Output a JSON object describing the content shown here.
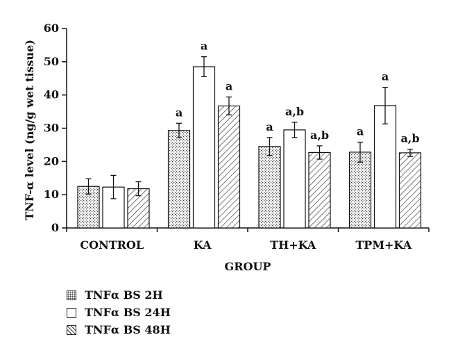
{
  "chart_data": {
    "type": "bar",
    "title": "",
    "xlabel": "GROUP",
    "ylabel": "TNF-α level (ng/g wet tissue)",
    "ylim": [
      0,
      60
    ],
    "yticks": [
      0,
      10,
      20,
      30,
      40,
      50,
      60
    ],
    "grid": false,
    "legend_position": "bottom-left",
    "categories": [
      "CONTROL",
      "KA",
      "TH+KA",
      "TPM+KA"
    ],
    "series": [
      {
        "name": "TNFα BS 2H",
        "pattern": "dots",
        "values": [
          12.5,
          29.3,
          24.5,
          22.8
        ],
        "errors": [
          2.3,
          2.2,
          2.7,
          3.0
        ],
        "labels": [
          "",
          "a",
          "a",
          "a"
        ]
      },
      {
        "name": "TNFα BS 24H",
        "pattern": "open",
        "values": [
          12.3,
          48.5,
          29.5,
          36.8
        ],
        "errors": [
          3.5,
          3.0,
          2.3,
          5.5
        ],
        "labels": [
          "",
          "a",
          "a,b",
          "a"
        ]
      },
      {
        "name": "TNFα BS 48H",
        "pattern": "hatch",
        "values": [
          11.8,
          36.7,
          22.7,
          22.6
        ],
        "errors": [
          2.1,
          2.7,
          2.0,
          1.1
        ],
        "labels": [
          "",
          "a",
          "a,b",
          "a,b"
        ]
      }
    ]
  }
}
